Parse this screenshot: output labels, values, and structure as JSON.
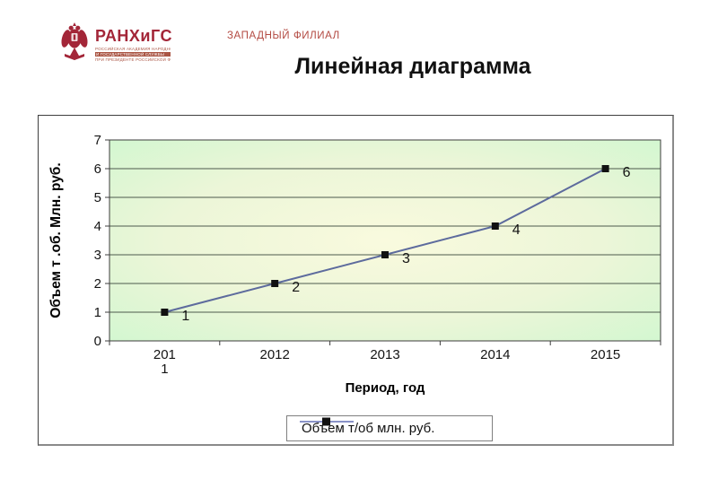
{
  "header": {
    "logo": {
      "wordmark": "РАНХиГС",
      "sub_lines": [
        "РОССИЙСКАЯ АКАДЕМИЯ НАРОДНОГО ХОЗЯЙСТВА",
        "И ГОСУДАРСТВЕННОЙ СЛУЖБЫ",
        "ПРИ ПРЕЗИДЕНТЕ РОССИЙСКОЙ ФЕДЕРАЦИИ"
      ],
      "color": "#a32638"
    },
    "branch_label": "ЗАПАДНЫЙ ФИЛИАЛ",
    "title": "Линейная диаграмма"
  },
  "chart_data": {
    "type": "line",
    "title": "",
    "categories": [
      "2011",
      "2012",
      "2013",
      "2014",
      "2015"
    ],
    "x_tick_lines": [
      [
        "201",
        "1"
      ],
      [
        "2012"
      ],
      [
        "2013"
      ],
      [
        "2014"
      ],
      [
        "2015"
      ]
    ],
    "series": [
      {
        "name": "Объем т/об млн. руб.",
        "values": [
          1,
          2,
          3,
          4,
          6
        ]
      }
    ],
    "data_labels": [
      "1",
      "2",
      "3",
      "4",
      "6"
    ],
    "xlabel": "Период, год",
    "ylabel": "Объем т .об. Млн. руб.",
    "ylim": [
      0,
      7
    ],
    "y_ticks": [
      0,
      1,
      2,
      3,
      4,
      5,
      6,
      7
    ],
    "grid": "horizontal",
    "legend_position": "bottom",
    "marker": "square",
    "colors": {
      "line": "#5d6b9d",
      "legend_line": "#8a93c8",
      "marker": "#111111",
      "gridline": "#4d5a4d",
      "plot_border": "#3c3c3c",
      "plot_bg_center": "#f9fade",
      "plot_bg_mid": "#ecf6d8",
      "plot_bg_edge": "#d2f7d0",
      "label": "#141414"
    }
  }
}
